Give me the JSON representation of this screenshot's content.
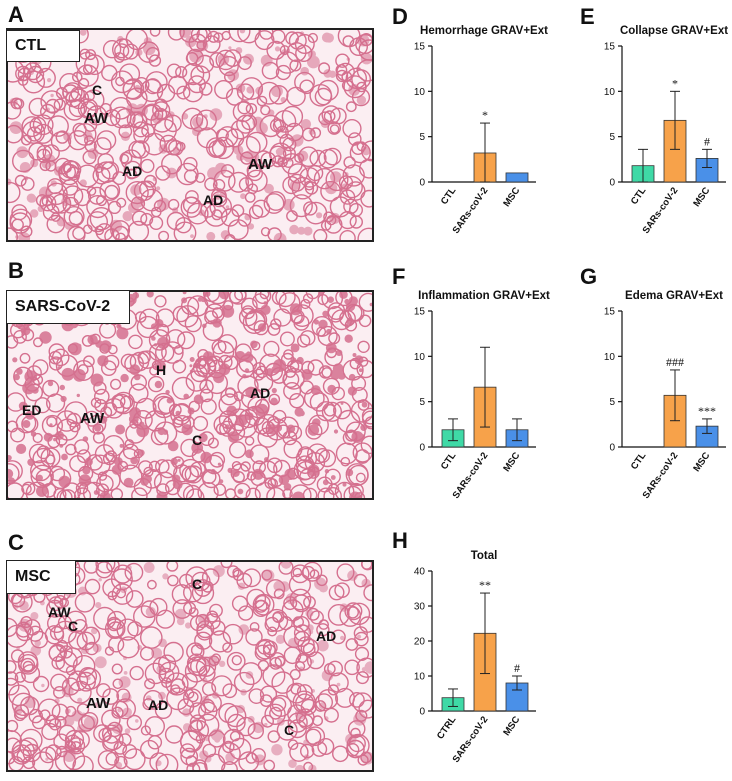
{
  "panels": {
    "A": "A",
    "B": "B",
    "C": "C",
    "D": "D",
    "E": "E",
    "F": "F",
    "G": "G",
    "H": "H"
  },
  "micrographs": [
    {
      "letter": "A",
      "condition": "CTL",
      "labels": [
        "C",
        "AW",
        "AD",
        "AW",
        "AD"
      ]
    },
    {
      "letter": "B",
      "condition": "SARS-CoV-2",
      "labels": [
        "H",
        "ED",
        "AW",
        "C",
        "AD"
      ]
    },
    {
      "letter": "C",
      "condition": "MSC",
      "labels": [
        "C",
        "AW",
        "C",
        "AD",
        "AW",
        "AD",
        "C"
      ]
    }
  ],
  "colors": {
    "ctl": "#3fd9a6",
    "sars": "#f7a24a",
    "msc": "#4a90e8",
    "tissue": "#d5708f",
    "background": "#fbeef2"
  },
  "chart_data": [
    {
      "panel": "D",
      "type": "bar",
      "title": "Hemorrhage GRAV+Ext",
      "categories": [
        "CTL",
        "SARs-coV-2",
        "MSC"
      ],
      "values": [
        0,
        3.2,
        1.0
      ],
      "errors": [
        0,
        3.3,
        0
      ],
      "annotations": [
        "",
        "*",
        ""
      ],
      "ylim": [
        0,
        15
      ],
      "yticks": [
        0,
        5,
        10,
        15
      ]
    },
    {
      "panel": "E",
      "type": "bar",
      "title": "Collapse GRAV+Ext",
      "categories": [
        "CTL",
        "SARs-coV-2",
        "MSC"
      ],
      "values": [
        1.8,
        6.8,
        2.6
      ],
      "errors": [
        1.8,
        3.2,
        1.0
      ],
      "annotations": [
        "",
        "*",
        "#"
      ],
      "ylim": [
        0,
        15
      ],
      "yticks": [
        0,
        5,
        10,
        15
      ]
    },
    {
      "panel": "F",
      "type": "bar",
      "title": "Inflammation GRAV+Ext",
      "categories": [
        "CTL",
        "SARs-coV-2",
        "MSC"
      ],
      "values": [
        1.9,
        6.6,
        1.9
      ],
      "errors": [
        1.2,
        4.4,
        1.2
      ],
      "annotations": [
        "",
        "",
        ""
      ],
      "ylim": [
        0,
        15
      ],
      "yticks": [
        0,
        5,
        10,
        15
      ]
    },
    {
      "panel": "G",
      "type": "bar",
      "title": "Edema GRAV+Ext",
      "categories": [
        "CTL",
        "SARs-coV-2",
        "MSC"
      ],
      "values": [
        0,
        5.7,
        2.3
      ],
      "errors": [
        0,
        2.8,
        0.8
      ],
      "annotations": [
        "",
        "###",
        "***"
      ],
      "ylim": [
        0,
        15
      ],
      "yticks": [
        0,
        5,
        10,
        15
      ]
    },
    {
      "panel": "H",
      "type": "bar",
      "title": "Total",
      "categories": [
        "CTRL",
        "SARs-coV-2",
        "MSC"
      ],
      "values": [
        3.8,
        22.2,
        8.0
      ],
      "errors": [
        2.5,
        11.5,
        2.0
      ],
      "annotations": [
        "",
        "**",
        "#"
      ],
      "ylim": [
        0,
        40
      ],
      "yticks": [
        0,
        10,
        20,
        30,
        40
      ]
    }
  ]
}
